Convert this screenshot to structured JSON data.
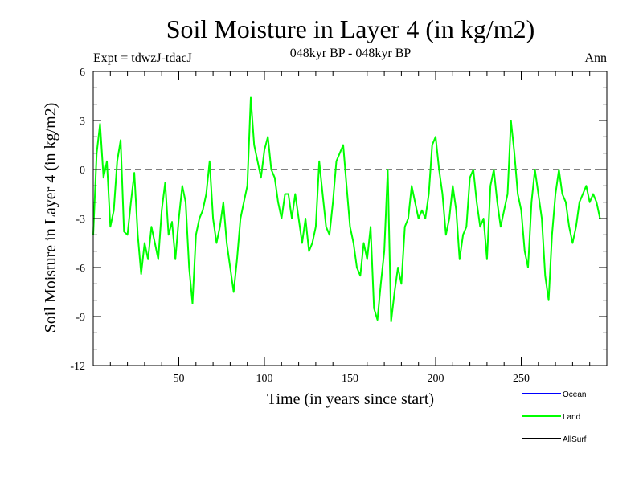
{
  "chart_data": {
    "type": "line",
    "title": "Soil Moisture in Layer 4 (in kg/m2)",
    "subtitle": "048kyr BP - 048kyr BP",
    "left_note": "Expt = tdwzJ-tdacJ",
    "right_note": "Ann",
    "xlabel": "Time (in years since start)",
    "ylabel": "Soil Moisture in Layer 4 (in kg/m2)",
    "xlim": [
      0,
      300
    ],
    "ylim": [
      -12,
      6
    ],
    "x_ticks": [
      50,
      100,
      150,
      200,
      250
    ],
    "y_ticks": [
      6,
      3,
      0,
      -3,
      -6,
      -9,
      -12
    ],
    "reference_line": 0,
    "legend_position": "bottom-right",
    "series": [
      {
        "name": "Ocean",
        "color": "#0000ff",
        "values": []
      },
      {
        "name": "Land",
        "color": "#00ff00",
        "x_start": 0,
        "x_step": 2,
        "values": [
          -4.0,
          1.0,
          2.8,
          -0.5,
          0.5,
          -3.5,
          -2.5,
          0.5,
          1.8,
          -3.8,
          -4.0,
          -2.0,
          -0.2,
          -4.0,
          -6.4,
          -4.5,
          -5.5,
          -3.5,
          -4.5,
          -5.5,
          -2.5,
          -0.8,
          -4.0,
          -3.2,
          -5.5,
          -3.0,
          -1.0,
          -2.0,
          -6.0,
          -8.2,
          -4.0,
          -3.0,
          -2.5,
          -1.5,
          0.5,
          -3.0,
          -4.5,
          -3.5,
          -2.0,
          -4.5,
          -6.0,
          -7.5,
          -5.5,
          -3.0,
          -2.0,
          -1.0,
          4.4,
          1.5,
          0.5,
          -0.5,
          1.2,
          2.0,
          0.0,
          -0.5,
          -2.0,
          -3.0,
          -1.5,
          -1.5,
          -3.0,
          -1.5,
          -3.0,
          -4.5,
          -3.0,
          -5.0,
          -4.5,
          -3.5,
          0.5,
          -1.5,
          -3.5,
          -4.0,
          -2.0,
          0.5,
          1.0,
          1.5,
          -1.0,
          -3.5,
          -4.5,
          -6.0,
          -6.5,
          -4.5,
          -5.5,
          -3.5,
          -8.5,
          -9.2,
          -7.0,
          -5.0,
          0.0,
          -9.3,
          -7.5,
          -6.0,
          -7.0,
          -3.5,
          -3.0,
          -1.0,
          -2.0,
          -3.0,
          -2.5,
          -3.0,
          -1.5,
          1.5,
          2.0,
          0.0,
          -1.5,
          -4.0,
          -3.0,
          -1.0,
          -2.5,
          -5.5,
          -4.0,
          -3.5,
          -0.5,
          0.0,
          -2.0,
          -3.5,
          -3.0,
          -5.5,
          -1.0,
          0.0,
          -2.0,
          -3.5,
          -2.5,
          -1.5,
          3.0,
          1.0,
          -1.5,
          -2.5,
          -5.0,
          -6.0,
          -2.0,
          0.0,
          -1.5,
          -3.0,
          -6.5,
          -8.0,
          -4.0,
          -1.5,
          0.0,
          -1.5,
          -2.0,
          -3.5,
          -4.5,
          -3.5,
          -2.0,
          -1.5,
          -1.0,
          -2.0,
          -1.5,
          -2.0,
          -3.0
        ]
      },
      {
        "name": "AllSurf",
        "color": "#000000",
        "values": []
      }
    ]
  }
}
